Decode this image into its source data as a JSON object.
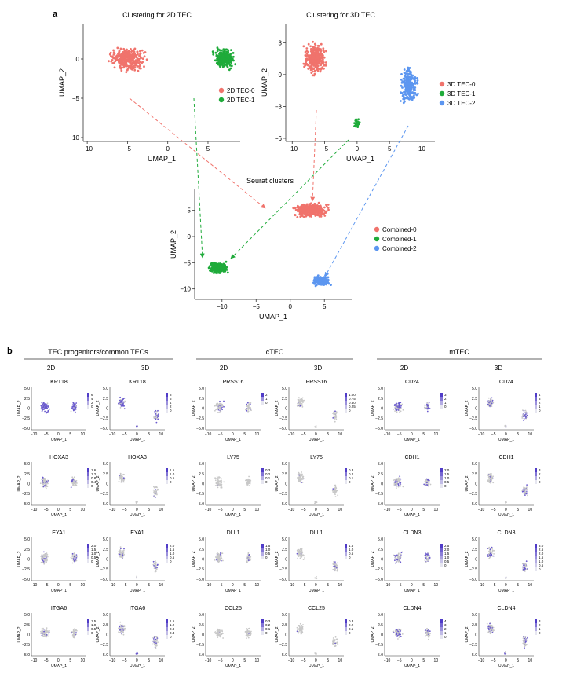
{
  "panel_a": {
    "label": "a",
    "plots": [
      {
        "title": "Clustering for 2D TEC",
        "xlabel": "UMAP_1",
        "ylabel": "UMAP_2",
        "xticks": [
          "−10",
          "−5",
          "0",
          "5"
        ],
        "yticks": [
          "0",
          "−5",
          "−10"
        ],
        "legend": [
          {
            "label": "2D TEC-0",
            "color": "#f0736c"
          },
          {
            "label": "2D TEC-1",
            "color": "#1fab3a"
          }
        ]
      },
      {
        "title": "Clustering for 3D TEC",
        "xlabel": "UMAP_1",
        "ylabel": "UMAP_2",
        "xticks": [
          "−10",
          "−5",
          "0",
          "5",
          "10"
        ],
        "yticks": [
          "3",
          "0",
          "−3",
          "−6"
        ],
        "legend": [
          {
            "label": "3D TEC-0",
            "color": "#f0736c"
          },
          {
            "label": "3D TEC-1",
            "color": "#1fab3a"
          },
          {
            "label": "3D TEC-2",
            "color": "#5c96f0"
          }
        ]
      },
      {
        "title": "Seurat clusters",
        "xlabel": "UMAP_1",
        "ylabel": "UMAP_2",
        "xticks": [
          "−10",
          "−5",
          "0",
          "5"
        ],
        "yticks": [
          "5",
          "0",
          "−5",
          "−10"
        ],
        "legend": [
          {
            "label": "Combined-0",
            "color": "#f0736c"
          },
          {
            "label": "Combined-1",
            "color": "#1fab3a"
          },
          {
            "label": "Combined-2",
            "color": "#5c96f0"
          }
        ]
      }
    ]
  },
  "panel_b": {
    "label": "b",
    "groups": [
      "TEC progenitors/common TECs",
      "cTEC",
      "mTEC"
    ],
    "conditions": [
      "2D",
      "3D"
    ],
    "axis_xlabel": "UMAP_1",
    "axis_ylabel": "UMAP_2",
    "xticks": [
      "−10",
      "−5",
      "0",
      "5",
      "10"
    ],
    "yticks": [
      "5.0",
      "2.5",
      "0",
      "−2.5",
      "−5.0"
    ],
    "genes": [
      [
        "KRT18",
        "KRT18",
        "PRSS16",
        "PRSS16",
        "CD24",
        "CD24"
      ],
      [
        "HOXA3",
        "HOXA3",
        "LY75",
        "LY75",
        "CDH1",
        "CDH1"
      ],
      [
        "EYA1",
        "EYA1",
        "DLL1",
        "DLL1",
        "CLDN3",
        "CLDN3"
      ],
      [
        "ITGA6",
        "ITGA6",
        "CCL25",
        "CCL25",
        "CLDN4",
        "CLDN4"
      ]
    ],
    "scales": [
      [
        [
          "6",
          "4",
          "2",
          "0"
        ],
        [
          "8",
          "6",
          "4",
          "2",
          "0"
        ],
        [
          "2",
          "1",
          "0"
        ],
        [
          "1.00",
          "0.75",
          "0.50",
          "0.25",
          "0"
        ],
        [
          "3",
          "2",
          "1",
          "0"
        ],
        [
          "4",
          "3",
          "2",
          "1",
          "0"
        ]
      ],
      [
        [
          "1.6",
          "1.2",
          "0.8",
          "0.4",
          "0"
        ],
        [
          "1.5",
          "1.0",
          "0.5",
          "0"
        ],
        [
          "0.3",
          "0.2",
          "0.1",
          "0"
        ],
        [
          "0.3",
          "0.2",
          "0.1",
          "0"
        ],
        [
          "2.0",
          "1.5",
          "1.0",
          "0.5",
          "0"
        ],
        [
          "3",
          "2",
          "1",
          "0"
        ]
      ],
      [
        [
          "2.0",
          "1.5",
          "1.0",
          "0.5",
          "0"
        ],
        [
          "2.0",
          "1.5",
          "1.0",
          "0.5",
          "0"
        ],
        [
          "1.5",
          "1.0",
          "0.5",
          "0"
        ],
        [
          "1.5",
          "1.0",
          "0.5",
          "0"
        ],
        [
          "2.5",
          "2.0",
          "1.5",
          "1.0",
          "0.5",
          "0"
        ],
        [
          "3.0",
          "2.5",
          "2.0",
          "1.5",
          "1.0",
          "0.5",
          "0"
        ]
      ],
      [
        [
          "1.5",
          "1.0",
          "0.5",
          "0"
        ],
        [
          "1.6",
          "1.2",
          "0.8",
          "0.4",
          "0"
        ],
        [
          "0.3",
          "0.2",
          "0.1",
          "0"
        ],
        [
          "0.3",
          "0.2",
          "0.1",
          "0"
        ],
        [
          "4",
          "3",
          "2",
          "1",
          "0"
        ],
        [
          "3",
          "2",
          "1",
          "0"
        ]
      ]
    ]
  },
  "chart_data": [
    {
      "type": "scatter",
      "title": "Clustering for 2D TEC",
      "xlabel": "UMAP_1",
      "ylabel": "UMAP_2",
      "xlim": [
        -10.5,
        9
      ],
      "ylim": [
        -10.5,
        4.5
      ],
      "series": [
        {
          "name": "2D TEC-0",
          "color": "#f0736c",
          "center": [
            -5,
            0
          ],
          "spread": [
            2.6,
            1.7
          ],
          "n": 340
        },
        {
          "name": "2D TEC-1",
          "color": "#1fab3a",
          "center": [
            7,
            0
          ],
          "spread": [
            1.6,
            1.6
          ],
          "n": 220
        }
      ]
    },
    {
      "type": "scatter",
      "title": "Clustering for 3D TEC",
      "xlabel": "UMAP_1",
      "ylabel": "UMAP_2",
      "xlim": [
        -11,
        12
      ],
      "ylim": [
        -6.3,
        4.8
      ],
      "series": [
        {
          "name": "3D TEC-0",
          "color": "#f0736c",
          "center": [
            -6.5,
            1.5
          ],
          "spread": [
            2.0,
            1.8
          ],
          "n": 300
        },
        {
          "name": "3D TEC-1",
          "color": "#1fab3a",
          "center": [
            0,
            -4.6
          ],
          "spread": [
            0.6,
            0.5
          ],
          "n": 40
        },
        {
          "name": "3D TEC-2",
          "color": "#5c96f0",
          "center": [
            8,
            -1
          ],
          "spread": [
            1.6,
            2.0
          ],
          "n": 230
        }
      ]
    },
    {
      "type": "scatter",
      "title": "Seurat clusters",
      "xlabel": "UMAP_1",
      "ylabel": "UMAP_2",
      "xlim": [
        -14,
        9
      ],
      "ylim": [
        -12,
        9
      ],
      "series": [
        {
          "name": "Combined-0",
          "color": "#f0736c",
          "center": [
            3,
            5
          ],
          "spread": [
            3.0,
            1.6
          ],
          "n": 360
        },
        {
          "name": "Combined-1",
          "color": "#1fab3a",
          "center": [
            -10.5,
            -6
          ],
          "spread": [
            1.7,
            1.4
          ],
          "n": 220
        },
        {
          "name": "Combined-2",
          "color": "#5c96f0",
          "center": [
            4.5,
            -8.5
          ],
          "spread": [
            1.6,
            1.2
          ],
          "n": 160
        }
      ]
    }
  ]
}
